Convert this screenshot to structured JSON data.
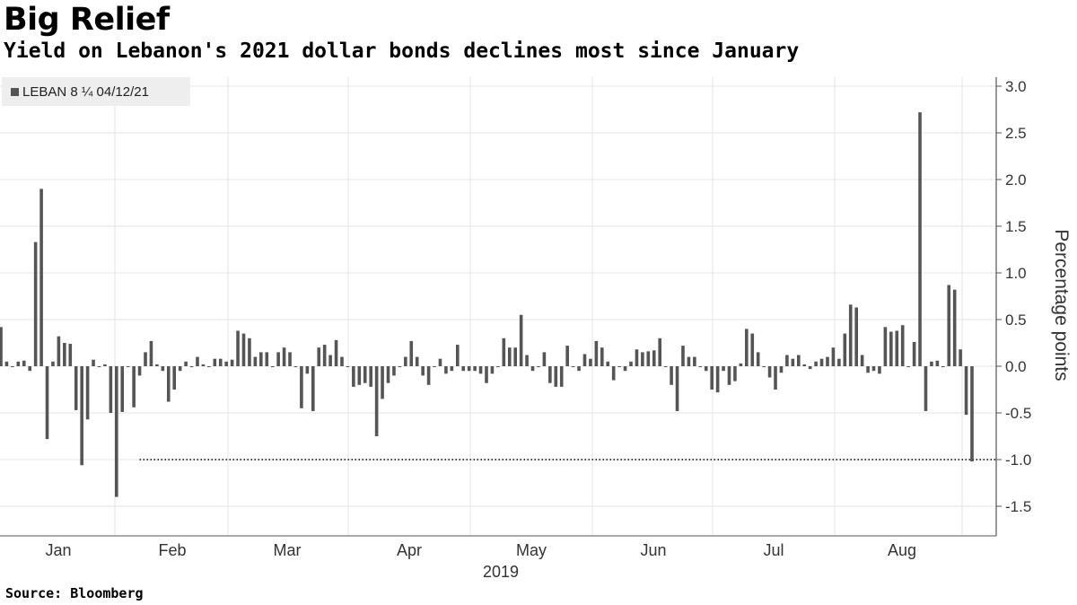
{
  "title": "Big Relief",
  "subtitle": "Yield on Lebanon's 2021 dollar bonds declines most since January",
  "legend_label": "LEBAN 8 ¼ 04/12/21",
  "source": "Source: Bloomberg",
  "colors": {
    "bar": "#555555",
    "grid": "#e6e6e6",
    "axis": "#555555",
    "reference_line": "#444444"
  },
  "chart_data": {
    "type": "bar",
    "title": "Big Relief",
    "subtitle": "Yield on Lebanon's 2021 dollar bonds declines most since January",
    "ylabel": "Percentage points",
    "ylim": [
      -1.8,
      3.1
    ],
    "yticks": [
      3.0,
      2.5,
      2.0,
      1.5,
      1.0,
      0.5,
      0.0,
      -0.5,
      -1.0,
      -1.5
    ],
    "ytick_labels": [
      "3.0",
      "2.5",
      "2.0",
      "1.5",
      "1.0",
      "0.5",
      "0.0",
      "-0.5",
      "-1.0",
      "-1.5"
    ],
    "y_axis_side": "right",
    "grid": true,
    "legend_position": "top-left",
    "x_month_labels": [
      "Jan",
      "Feb",
      "Mar",
      "Apr",
      "May",
      "Jun",
      "Jul",
      "Aug"
    ],
    "x_year_label": "2019",
    "reference_line": {
      "value": -1.0,
      "style": "dotted",
      "from_index": 24
    },
    "series": [
      {
        "name": "LEBAN 8 ¼ 04/12/21",
        "values": [
          0.42,
          0.05,
          0.0,
          0.05,
          0.06,
          -0.05,
          1.33,
          1.9,
          -0.78,
          0.05,
          0.32,
          0.25,
          0.24,
          -0.47,
          -1.06,
          -0.57,
          0.07,
          0.0,
          0.02,
          -0.5,
          -1.4,
          -0.49,
          0.0,
          -0.44,
          -0.1,
          0.15,
          0.27,
          0.02,
          -0.05,
          -0.38,
          -0.25,
          -0.05,
          0.05,
          0.0,
          0.1,
          0.02,
          0.0,
          0.08,
          0.08,
          0.05,
          0.07,
          0.38,
          0.35,
          0.3,
          0.1,
          0.15,
          0.15,
          0.0,
          0.15,
          0.2,
          0.15,
          0.0,
          -0.45,
          -0.08,
          -0.48,
          0.2,
          0.23,
          0.12,
          0.28,
          0.1,
          0.0,
          -0.22,
          -0.2,
          -0.18,
          -0.22,
          -0.75,
          -0.35,
          -0.18,
          -0.1,
          0.0,
          0.1,
          0.27,
          0.1,
          -0.1,
          -0.2,
          0.0,
          0.08,
          -0.08,
          -0.05,
          0.23,
          -0.05,
          -0.05,
          -0.05,
          -0.08,
          -0.18,
          -0.08,
          0.0,
          0.3,
          0.2,
          0.2,
          0.55,
          0.12,
          -0.05,
          0.0,
          0.15,
          -0.18,
          -0.22,
          -0.22,
          0.22,
          0.0,
          -0.05,
          0.13,
          0.08,
          0.27,
          0.2,
          0.05,
          -0.15,
          0.0,
          -0.05,
          0.05,
          0.18,
          0.15,
          0.16,
          0.17,
          0.3,
          0.0,
          -0.2,
          -0.48,
          0.22,
          0.1,
          0.1,
          0.0,
          -0.05,
          -0.25,
          -0.28,
          -0.05,
          -0.2,
          -0.16,
          0.03,
          0.4,
          0.35,
          0.15,
          0.0,
          -0.12,
          -0.25,
          -0.07,
          0.12,
          0.08,
          0.12,
          0.02,
          -0.03,
          0.05,
          0.08,
          0.1,
          0.2,
          0.08,
          0.35,
          0.66,
          0.63,
          0.12,
          -0.07,
          -0.05,
          -0.08,
          0.42,
          0.37,
          0.38,
          0.44,
          0.0,
          0.26,
          2.72,
          -0.48,
          0.05,
          0.06,
          0.0,
          0.87,
          0.82,
          0.18,
          -0.52,
          -1.02
        ]
      }
    ]
  }
}
